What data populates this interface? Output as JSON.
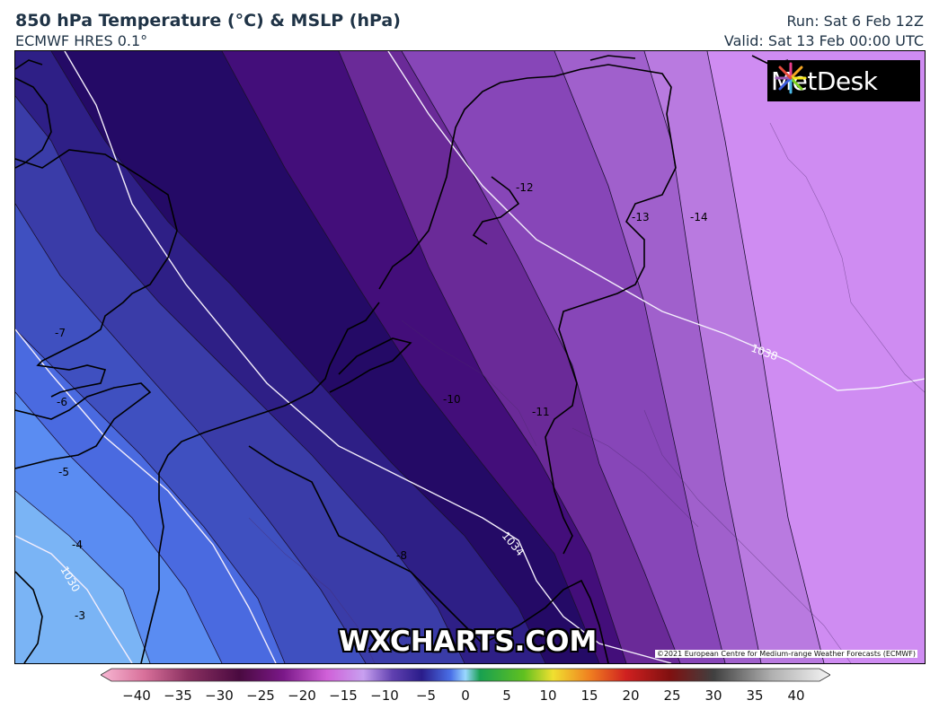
{
  "header": {
    "title": "850 hPa Temperature (°C) & MSLP (hPa)",
    "model": "ECMWF HRES 0.1°",
    "run": "Run: Sat 6 Feb 12Z",
    "valid": "Valid: Sat 13 Feb 00:00 UTC"
  },
  "logo": {
    "text": "MetDesk"
  },
  "watermark": "WXCHARTS.COM",
  "copyright": "©2021 European Centre for Medium-range Weather Forecasts (ECMWF)",
  "temperature_labels": [
    "-12",
    "-13",
    "-14",
    "-7",
    "-6",
    "-5",
    "-4",
    "-3",
    "-8",
    "-10",
    "-11"
  ],
  "pressure_labels": [
    "1038",
    "1034",
    "1030"
  ],
  "colorbar": {
    "ticks": [
      "−40",
      "−35",
      "−30",
      "−25",
      "−20",
      "−15",
      "−10",
      "−5",
      "0",
      "5",
      "10",
      "15",
      "20",
      "25",
      "30",
      "35",
      "40"
    ]
  },
  "colors": {
    "band_-3": "#7ab4f5",
    "band_-4": "#5a8cf2",
    "band_-5": "#4a6ae0",
    "band_-6": "#3f50c0",
    "band_-7": "#3a3ca8",
    "band_-8": "#2e1f86",
    "band_-9": "#240a66",
    "band_-10": "#430e7a",
    "band_-11": "#6a2a98",
    "band_-12": "#8746b8",
    "band_-13": "#a060cc",
    "band_-14": "#b97ae0",
    "band_-15": "#cf8cf2"
  }
}
